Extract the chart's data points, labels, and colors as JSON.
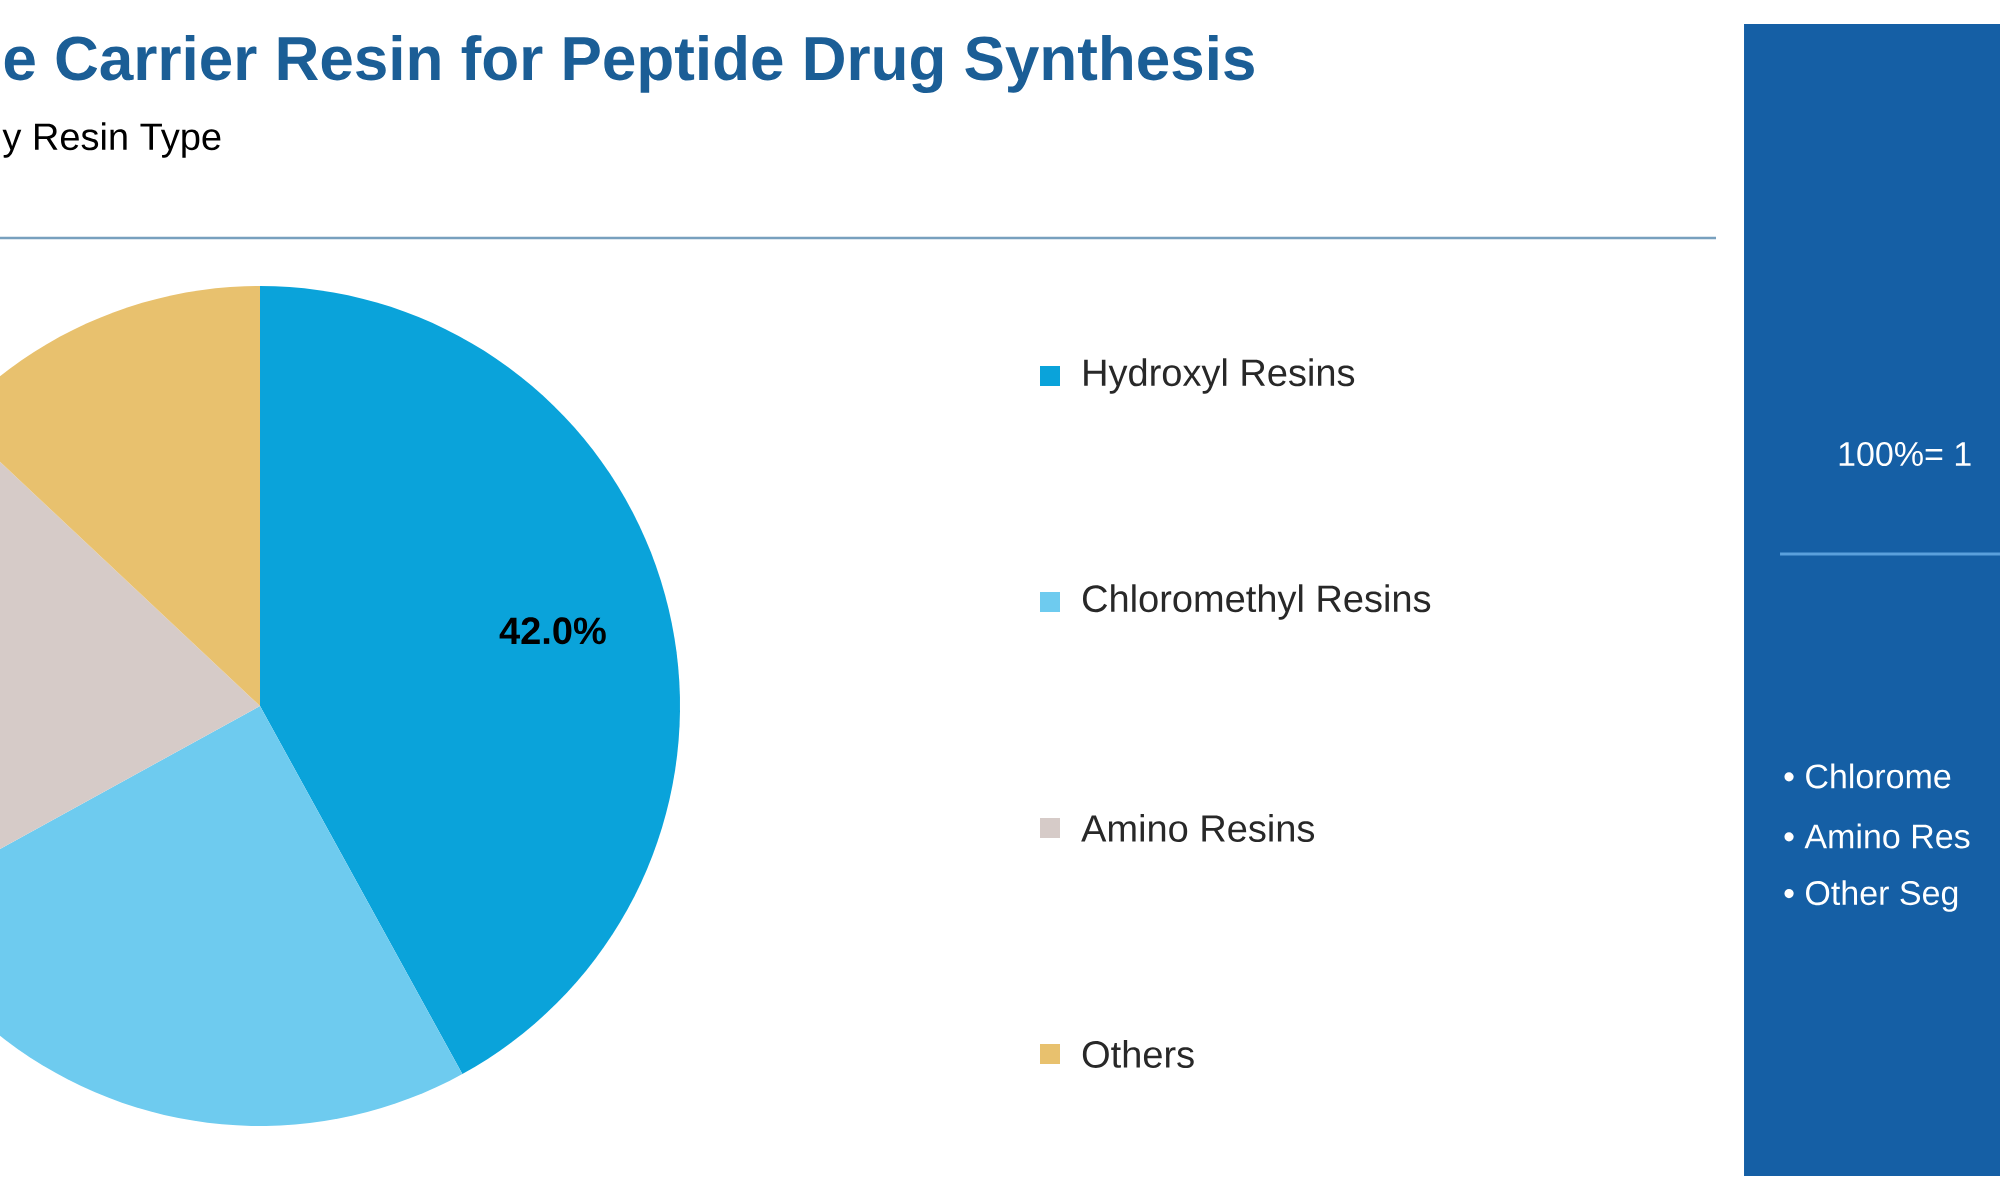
{
  "chart_data": {
    "type": "pie",
    "title": "e Carrier Resin for Peptide Drug Synthesis",
    "subtitle": "y Resin Type",
    "categories": [
      "Hydroxyl Resins",
      "Chloromethyl Resins",
      "Amino Resins",
      "Others"
    ],
    "values": [
      42,
      25,
      20,
      13
    ],
    "colors": [
      "#0aa3da",
      "#6ecbef",
      "#d6cbc8",
      "#e8c16e"
    ],
    "value_labels": [
      "42.0%",
      null,
      null,
      null
    ],
    "legend": "right",
    "annotations": [
      "100%= 1",
      "• Chlorome",
      "• Amino Res",
      "• Other Seg"
    ]
  }
}
